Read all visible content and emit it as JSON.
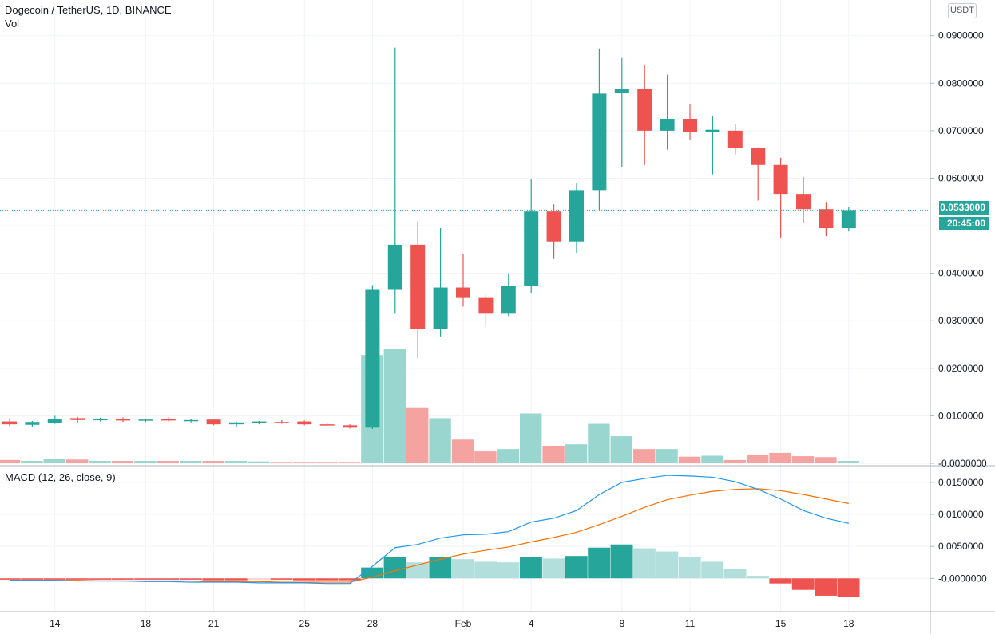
{
  "header": {
    "title": "Dogecoin / TetherUS, 1D, BINANCE",
    "volume_label": "Vol",
    "macd_label": "MACD (12, 26, close, 9)",
    "currency": "USDT"
  },
  "price_scale": {
    "labels": [
      "0.0900000",
      "0.0800000",
      "0.0700000",
      "0.0600000",
      "0.0400000",
      "0.0300000",
      "0.0200000",
      "0.0100000",
      "-0.0000000"
    ],
    "values": [
      0.09,
      0.08,
      0.07,
      0.06,
      0.04,
      0.03,
      0.02,
      0.01,
      0.0
    ]
  },
  "macd_scale": {
    "labels": [
      "0.0150000",
      "0.0100000",
      "0.0050000",
      "-0.0000000"
    ],
    "values": [
      0.015,
      0.01,
      0.005,
      0.0
    ]
  },
  "last_price": {
    "label": "0.0533000",
    "value": 0.0533,
    "countdown": "20:45:00"
  },
  "x_axis": {
    "labels": [
      {
        "text": "14",
        "index": 2
      },
      {
        "text": "18",
        "index": 6
      },
      {
        "text": "21",
        "index": 9
      },
      {
        "text": "25",
        "index": 13
      },
      {
        "text": "28",
        "index": 16
      },
      {
        "text": "Feb",
        "index": 20
      },
      {
        "text": "4",
        "index": 23
      },
      {
        "text": "8",
        "index": 27
      },
      {
        "text": "11",
        "index": 30
      },
      {
        "text": "15",
        "index": 34
      },
      {
        "text": "18",
        "index": 37
      }
    ]
  },
  "colors": {
    "up": "#26a69a",
    "down": "#ef5350",
    "vol_up": "#99d6cf",
    "vol_down": "#f5a3a1",
    "macd_line": "#2196f3",
    "signal_line": "#ff6d00",
    "hist_up_strong": "#26a69a",
    "hist_up_weak": "#b2dfdb",
    "hist_down_strong": "#ef5350",
    "hist_down_weak": "#ffcdd2",
    "grid": "#f0f3fa"
  },
  "chart_data": {
    "type": "candlestick",
    "candles": [
      {
        "o": 0.0088,
        "h": 0.0094,
        "l": 0.0078,
        "c": 0.0082
      },
      {
        "o": 0.0081,
        "h": 0.0089,
        "l": 0.0077,
        "c": 0.0087
      },
      {
        "o": 0.0085,
        "h": 0.01,
        "l": 0.0083,
        "c": 0.0094
      },
      {
        "o": 0.0095,
        "h": 0.0098,
        "l": 0.0086,
        "c": 0.0091
      },
      {
        "o": 0.0092,
        "h": 0.0096,
        "l": 0.0088,
        "c": 0.0093
      },
      {
        "o": 0.0094,
        "h": 0.0097,
        "l": 0.0087,
        "c": 0.009
      },
      {
        "o": 0.0091,
        "h": 0.0094,
        "l": 0.0087,
        "c": 0.0092
      },
      {
        "o": 0.0093,
        "h": 0.0097,
        "l": 0.0088,
        "c": 0.009
      },
      {
        "o": 0.0089,
        "h": 0.0093,
        "l": 0.0086,
        "c": 0.0091
      },
      {
        "o": 0.0092,
        "h": 0.0093,
        "l": 0.008,
        "c": 0.0082
      },
      {
        "o": 0.0082,
        "h": 0.0088,
        "l": 0.0077,
        "c": 0.0086
      },
      {
        "o": 0.0085,
        "h": 0.0089,
        "l": 0.0082,
        "c": 0.0088
      },
      {
        "o": 0.0087,
        "h": 0.0091,
        "l": 0.0083,
        "c": 0.0086
      },
      {
        "o": 0.0088,
        "h": 0.009,
        "l": 0.008,
        "c": 0.0082
      },
      {
        "o": 0.0082,
        "h": 0.0085,
        "l": 0.0079,
        "c": 0.0081
      },
      {
        "o": 0.008,
        "h": 0.0082,
        "l": 0.0073,
        "c": 0.0075
      },
      {
        "o": 0.0075,
        "h": 0.0375,
        "l": 0.0072,
        "c": 0.0365
      },
      {
        "o": 0.0365,
        "h": 0.0875,
        "l": 0.0315,
        "c": 0.046
      },
      {
        "o": 0.046,
        "h": 0.051,
        "l": 0.0222,
        "c": 0.0283
      },
      {
        "o": 0.0283,
        "h": 0.0495,
        "l": 0.0267,
        "c": 0.037
      },
      {
        "o": 0.037,
        "h": 0.044,
        "l": 0.033,
        "c": 0.0348
      },
      {
        "o": 0.0348,
        "h": 0.0355,
        "l": 0.0288,
        "c": 0.0315
      },
      {
        "o": 0.0315,
        "h": 0.04,
        "l": 0.031,
        "c": 0.0373
      },
      {
        "o": 0.0373,
        "h": 0.0598,
        "l": 0.0358,
        "c": 0.053
      },
      {
        "o": 0.053,
        "h": 0.0545,
        "l": 0.043,
        "c": 0.0467
      },
      {
        "o": 0.0467,
        "h": 0.059,
        "l": 0.0443,
        "c": 0.0575
      },
      {
        "o": 0.0575,
        "h": 0.0873,
        "l": 0.0533,
        "c": 0.0778
      },
      {
        "o": 0.078,
        "h": 0.0853,
        "l": 0.0623,
        "c": 0.0788
      },
      {
        "o": 0.0788,
        "h": 0.0838,
        "l": 0.0628,
        "c": 0.07
      },
      {
        "o": 0.07,
        "h": 0.0818,
        "l": 0.066,
        "c": 0.0725
      },
      {
        "o": 0.0725,
        "h": 0.0755,
        "l": 0.068,
        "c": 0.0697
      },
      {
        "o": 0.0698,
        "h": 0.073,
        "l": 0.0608,
        "c": 0.0702
      },
      {
        "o": 0.07,
        "h": 0.0715,
        "l": 0.065,
        "c": 0.0663
      },
      {
        "o": 0.0663,
        "h": 0.0665,
        "l": 0.0553,
        "c": 0.0628
      },
      {
        "o": 0.0628,
        "h": 0.0643,
        "l": 0.0475,
        "c": 0.0567
      },
      {
        "o": 0.0567,
        "h": 0.0603,
        "l": 0.0505,
        "c": 0.0535
      },
      {
        "o": 0.0535,
        "h": 0.055,
        "l": 0.0478,
        "c": 0.0495
      },
      {
        "o": 0.0495,
        "h": 0.054,
        "l": 0.0488,
        "c": 0.0533
      }
    ],
    "volume": [
      0.0007,
      0.0005,
      0.0009,
      0.0008,
      0.0005,
      0.0005,
      0.0005,
      0.0005,
      0.0005,
      0.0005,
      0.0005,
      0.0004,
      0.0003,
      0.0003,
      0.0003,
      0.0003,
      0.0228,
      0.024,
      0.0118,
      0.0095,
      0.005,
      0.0025,
      0.003,
      0.0105,
      0.0037,
      0.004,
      0.0083,
      0.0057,
      0.003,
      0.003,
      0.0014,
      0.0016,
      0.0007,
      0.0018,
      0.0022,
      0.0015,
      0.0013,
      0.0005
    ],
    "macd": [
      -0.0003,
      -0.0003,
      -0.0003,
      -0.0004,
      -0.0004,
      -0.0004,
      -0.0005,
      -0.0005,
      -0.0006,
      -0.0006,
      -0.0006,
      -0.0007,
      -0.0007,
      -0.0007,
      -0.0008,
      -0.0008,
      0.0019,
      0.0048,
      0.0053,
      0.0063,
      0.0068,
      0.0069,
      0.0073,
      0.0088,
      0.0094,
      0.0106,
      0.0131,
      0.015,
      0.0156,
      0.0161,
      0.016,
      0.0158,
      0.0151,
      0.0139,
      0.0124,
      0.0106,
      0.0094,
      0.0086
    ],
    "signal": [
      -0.0003,
      -0.0003,
      -0.0003,
      -0.0003,
      -0.0004,
      -0.0004,
      -0.0004,
      -0.0004,
      -0.0004,
      -0.0005,
      -0.0005,
      -0.0005,
      -0.0006,
      -0.0006,
      -0.0006,
      -0.0006,
      0.0002,
      0.0012,
      0.0021,
      0.003,
      0.0038,
      0.0044,
      0.0049,
      0.0057,
      0.0064,
      0.0072,
      0.0084,
      0.0097,
      0.0111,
      0.0123,
      0.013,
      0.0136,
      0.0139,
      0.014,
      0.0137,
      0.0131,
      0.0124,
      0.0117
    ],
    "histogram": [
      -0.0002,
      -0.0002,
      -0.0002,
      -0.0002,
      -0.0002,
      -0.0002,
      -0.0002,
      -0.0002,
      -0.0002,
      -0.0003,
      -0.0003,
      -0.0002,
      -0.0002,
      -0.0003,
      -0.0003,
      -0.0003,
      0.0017,
      0.0034,
      0.0025,
      0.0034,
      0.003,
      0.0026,
      0.0025,
      0.0033,
      0.0031,
      0.0035,
      0.0048,
      0.0053,
      0.0047,
      0.0042,
      0.0034,
      0.0026,
      0.0015,
      0.0004,
      -0.0008,
      -0.0018,
      -0.0027,
      -0.0029
    ],
    "ylim_price": [
      -0.0005,
      0.0975
    ],
    "ylim_macd": [
      -0.0052,
      0.0176
    ]
  }
}
